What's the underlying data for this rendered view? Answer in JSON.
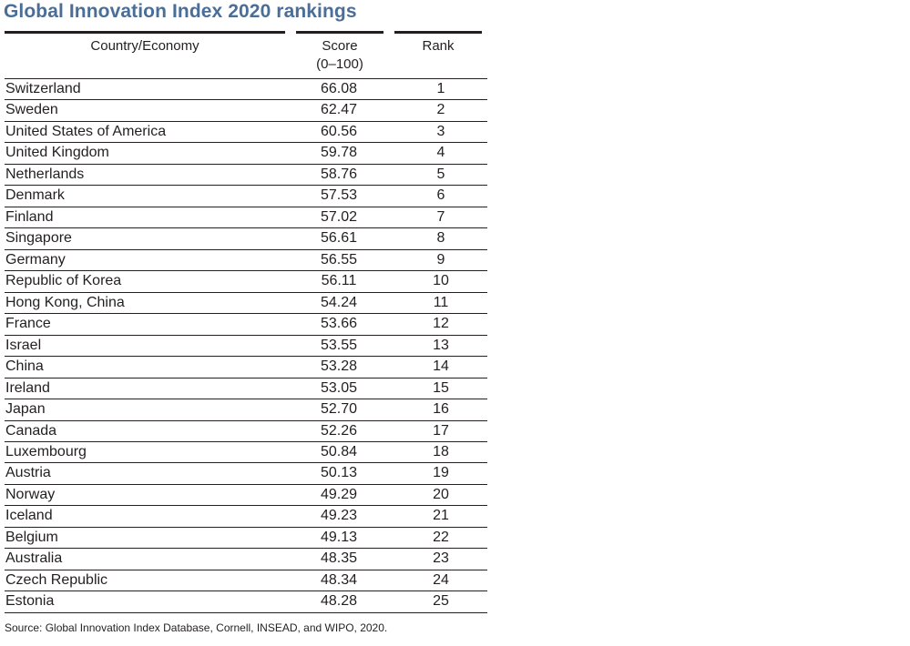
{
  "title": "Global Innovation Index 2020 rankings",
  "columns": {
    "country": "Country/Economy",
    "score_line1": "Score",
    "score_line2": "(0–100)",
    "rank": "Rank"
  },
  "rows": [
    {
      "country": "Switzerland",
      "score": "66.08",
      "rank": "1"
    },
    {
      "country": "Sweden",
      "score": "62.47",
      "rank": "2"
    },
    {
      "country": "United States of America",
      "score": "60.56",
      "rank": "3"
    },
    {
      "country": "United Kingdom",
      "score": "59.78",
      "rank": "4"
    },
    {
      "country": "Netherlands",
      "score": "58.76",
      "rank": "5"
    },
    {
      "country": "Denmark",
      "score": "57.53",
      "rank": "6"
    },
    {
      "country": "Finland",
      "score": "57.02",
      "rank": "7"
    },
    {
      "country": "Singapore",
      "score": "56.61",
      "rank": "8"
    },
    {
      "country": "Germany",
      "score": "56.55",
      "rank": "9"
    },
    {
      "country": "Republic of Korea",
      "score": "56.11",
      "rank": "10"
    },
    {
      "country": "Hong Kong, China",
      "score": "54.24",
      "rank": "11"
    },
    {
      "country": "France",
      "score": "53.66",
      "rank": "12"
    },
    {
      "country": "Israel",
      "score": "53.55",
      "rank": "13"
    },
    {
      "country": "China",
      "score": "53.28",
      "rank": "14"
    },
    {
      "country": "Ireland",
      "score": "53.05",
      "rank": "15"
    },
    {
      "country": "Japan",
      "score": "52.70",
      "rank": "16"
    },
    {
      "country": "Canada",
      "score": "52.26",
      "rank": "17"
    },
    {
      "country": "Luxembourg",
      "score": "50.84",
      "rank": "18"
    },
    {
      "country": "Austria",
      "score": "50.13",
      "rank": "19"
    },
    {
      "country": "Norway",
      "score": "49.29",
      "rank": "20"
    },
    {
      "country": "Iceland",
      "score": "49.23",
      "rank": "21"
    },
    {
      "country": "Belgium",
      "score": "49.13",
      "rank": "22"
    },
    {
      "country": "Australia",
      "score": "48.35",
      "rank": "23"
    },
    {
      "country": "Czech Republic",
      "score": "48.34",
      "rank": "24"
    },
    {
      "country": "Estonia",
      "score": "48.28",
      "rank": "25"
    }
  ],
  "source": "Source: Global Innovation Index Database, Cornell, INSEAD, and WIPO, 2020.",
  "colors": {
    "title": "#4a6e98",
    "text": "#231f20",
    "rule": "#231f20"
  }
}
